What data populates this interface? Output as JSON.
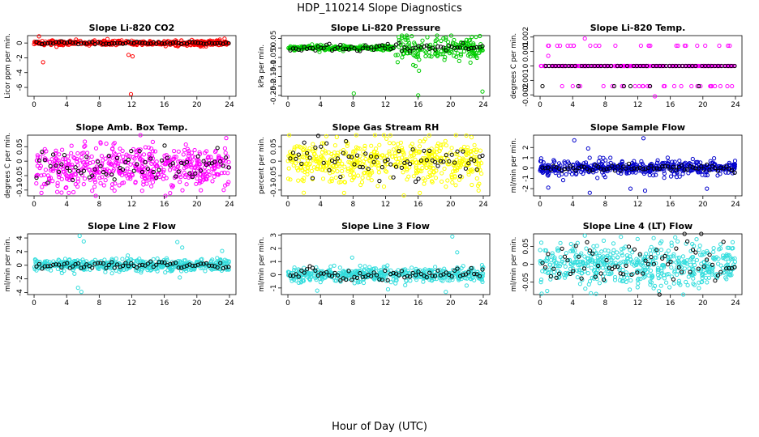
{
  "figure": {
    "title": "HDP_110214  Slope Diagnostics",
    "xlabel": "Hour of Day (UTC)"
  },
  "chart_data": [
    {
      "type": "scatter",
      "title": "Slope Li-820 CO2",
      "ylabel": "Licor ppm per min.",
      "color": "#ff0000",
      "xlim": [
        -0.8,
        24.8
      ],
      "ylim": [
        -7.2,
        1.0
      ],
      "xticks": [
        0,
        4,
        8,
        12,
        16,
        20,
        24
      ],
      "yticks": [
        0,
        -2,
        -4,
        -6
      ],
      "base": 0.0,
      "spread": 0.18,
      "black_spread": 0.1,
      "n_colored": 420,
      "n_black": 70,
      "outliers": [
        {
          "x": 1.1,
          "y": -2.6
        },
        {
          "x": 11.6,
          "y": -1.6
        },
        {
          "x": 12.1,
          "y": -1.8
        },
        {
          "x": 11.9,
          "y": -6.9
        },
        {
          "x": 0.6,
          "y": 0.9
        },
        {
          "x": 23.4,
          "y": 0.6
        }
      ]
    },
    {
      "type": "scatter",
      "title": "Slope Li-820 Pressure",
      "ylabel": "kPa per min.",
      "color": "#00cc00",
      "xlim": [
        -0.8,
        24.8
      ],
      "ylim": [
        -0.255,
        0.065
      ],
      "xticks": [
        0,
        4,
        8,
        12,
        16,
        20,
        24
      ],
      "yticks": [
        0.05,
        0,
        -0.05,
        -0.1,
        -0.15,
        -0.2,
        -0.25
      ],
      "base": 0.0,
      "spread": 0.006,
      "spread_late": 0.03,
      "late_start": 13,
      "black_spread": 0.01,
      "n_colored": 420,
      "n_black": 70,
      "outliers": [
        {
          "x": 8.1,
          "y": -0.24
        },
        {
          "x": 16.0,
          "y": -0.25
        },
        {
          "x": 23.9,
          "y": -0.23
        },
        {
          "x": 15.4,
          "y": -0.09
        },
        {
          "x": 16.1,
          "y": -0.12
        },
        {
          "x": 19.1,
          "y": 0.05
        }
      ]
    },
    {
      "type": "scatter",
      "title": "Slope Li-820 Temp.",
      "ylabel": "degrees C per min.",
      "color": "#ff00ff",
      "xlim": [
        -0.8,
        24.8
      ],
      "ylim": [
        -0.0021,
        0.0021
      ],
      "xticks": [
        0,
        4,
        8,
        12,
        16,
        20,
        24
      ],
      "yticks": [
        0.002,
        0.001,
        0,
        -0.001,
        -0.002
      ],
      "base": 0.0,
      "discrete_levels": [
        0.0014,
        0.0,
        -0.0014
      ],
      "level_weights": [
        0.08,
        0.84,
        0.08
      ],
      "n_colored": 300,
      "n_black": 60,
      "outliers": [
        {
          "x": 5.5,
          "y": 0.0019
        },
        {
          "x": 1.0,
          "y": 0.0007
        },
        {
          "x": 14.1,
          "y": -0.0021
        }
      ]
    },
    {
      "type": "scatter",
      "title": "Slope Amb. Box Temp.",
      "ylabel": "degrees C per min.",
      "color": "#ff00ff",
      "xlim": [
        -0.8,
        24.8
      ],
      "ylim": [
        -0.12,
        0.09
      ],
      "xticks": [
        0,
        4,
        8,
        12,
        16,
        20,
        24
      ],
      "yticks": [
        0.05,
        0,
        -0.05,
        -0.1
      ],
      "base": -0.02,
      "spread": 0.038,
      "black_spread": 0.03,
      "n_colored": 520,
      "n_black": 70,
      "outliers": [
        {
          "x": 0.9,
          "y": -0.11
        },
        {
          "x": 23.6,
          "y": 0.08
        }
      ]
    },
    {
      "type": "scatter",
      "title": "Slope Gas Stream RH",
      "ylabel": "percent per min.",
      "color": "#ffff00",
      "xlim": [
        -0.8,
        24.8
      ],
      "ylim": [
        -0.12,
        0.09
      ],
      "xticks": [
        0,
        4,
        8,
        12,
        16,
        20,
        24
      ],
      "yticks": [
        0.05,
        0,
        -0.05,
        -0.1
      ],
      "base": 0.0,
      "spread": 0.038,
      "black_spread": 0.035,
      "n_colored": 520,
      "n_black": 70,
      "outliers": [
        {
          "x": 16.2,
          "y": -0.11
        },
        {
          "x": 6.9,
          "y": -0.11
        }
      ]
    },
    {
      "type": "scatter",
      "title": "Slope Sample Flow",
      "ylabel": "ml/min per min.",
      "color": "#0000cc",
      "xlim": [
        -0.8,
        24.8
      ],
      "ylim": [
        -2.7,
        3.2
      ],
      "xticks": [
        0,
        4,
        8,
        12,
        16,
        20,
        24
      ],
      "yticks": [
        2,
        1,
        0,
        -1,
        -2
      ],
      "base": 0.0,
      "spread": 0.35,
      "black_spread": 0.15,
      "n_colored": 480,
      "n_black": 70,
      "outliers": [
        {
          "x": 4.2,
          "y": 2.7
        },
        {
          "x": 12.7,
          "y": 2.9
        },
        {
          "x": 12.9,
          "y": -2.2
        },
        {
          "x": 6.1,
          "y": -2.4
        },
        {
          "x": 5.9,
          "y": 1.9
        },
        {
          "x": 11.1,
          "y": -2.0
        },
        {
          "x": 20.5,
          "y": -2.0
        },
        {
          "x": 1.0,
          "y": -1.9
        }
      ]
    },
    {
      "type": "scatter",
      "title": "Slope Line 2 Flow",
      "ylabel": "ml/min per min.",
      "color": "#33dddd",
      "xlim": [
        -0.8,
        24.8
      ],
      "ylim": [
        -4.3,
        4.6
      ],
      "xticks": [
        0,
        4,
        8,
        12,
        16,
        20,
        24
      ],
      "yticks": [
        4,
        2,
        0,
        -2,
        -4
      ],
      "base": 0.0,
      "spread": 0.45,
      "black_spread": 0.25,
      "n_colored": 480,
      "n_black": 70,
      "outliers": [
        {
          "x": 5.6,
          "y": 4.3
        },
        {
          "x": 5.8,
          "y": -3.9
        },
        {
          "x": 5.4,
          "y": -3.3
        },
        {
          "x": 6.1,
          "y": 3.5
        },
        {
          "x": 17.6,
          "y": 3.4
        },
        {
          "x": 18.2,
          "y": 2.6
        },
        {
          "x": 23.1,
          "y": 2.1
        },
        {
          "x": 17.9,
          "y": -1.8
        }
      ]
    },
    {
      "type": "scatter",
      "title": "Slope Line 3 Flow",
      "ylabel": "ml/min per min.",
      "color": "#33dddd",
      "xlim": [
        -0.8,
        24.8
      ],
      "ylim": [
        -1.5,
        3.1
      ],
      "xticks": [
        0,
        4,
        8,
        12,
        16,
        20,
        24
      ],
      "yticks": [
        3,
        2,
        1,
        0,
        -1
      ],
      "base": 0.0,
      "spread": 0.28,
      "black_spread": 0.22,
      "n_colored": 460,
      "n_black": 70,
      "outliers": [
        {
          "x": 20.2,
          "y": 2.9
        },
        {
          "x": 19.4,
          "y": -1.3
        },
        {
          "x": 3.6,
          "y": -1.2
        },
        {
          "x": 7.9,
          "y": 1.3
        },
        {
          "x": 12.3,
          "y": -1.1
        },
        {
          "x": 20.8,
          "y": 1.7
        }
      ]
    },
    {
      "type": "scatter",
      "title": "Slope Line 4 (LT) Flow",
      "ylabel": "ml/min per min.",
      "color": "#33dddd",
      "xlim": [
        -0.8,
        24.8
      ],
      "ylim": [
        -0.085,
        0.085
      ],
      "xticks": [
        0,
        4,
        8,
        12,
        16,
        20,
        24
      ],
      "yticks": [
        0.05,
        0,
        -0.05
      ],
      "base": 0.0,
      "spread": 0.03,
      "black_spread": 0.035,
      "n_colored": 520,
      "n_black": 70,
      "outliers": [
        {
          "x": 5.5,
          "y": 0.08
        },
        {
          "x": 16.6,
          "y": 0.075
        },
        {
          "x": 14.6,
          "y": -0.075
        }
      ]
    }
  ]
}
